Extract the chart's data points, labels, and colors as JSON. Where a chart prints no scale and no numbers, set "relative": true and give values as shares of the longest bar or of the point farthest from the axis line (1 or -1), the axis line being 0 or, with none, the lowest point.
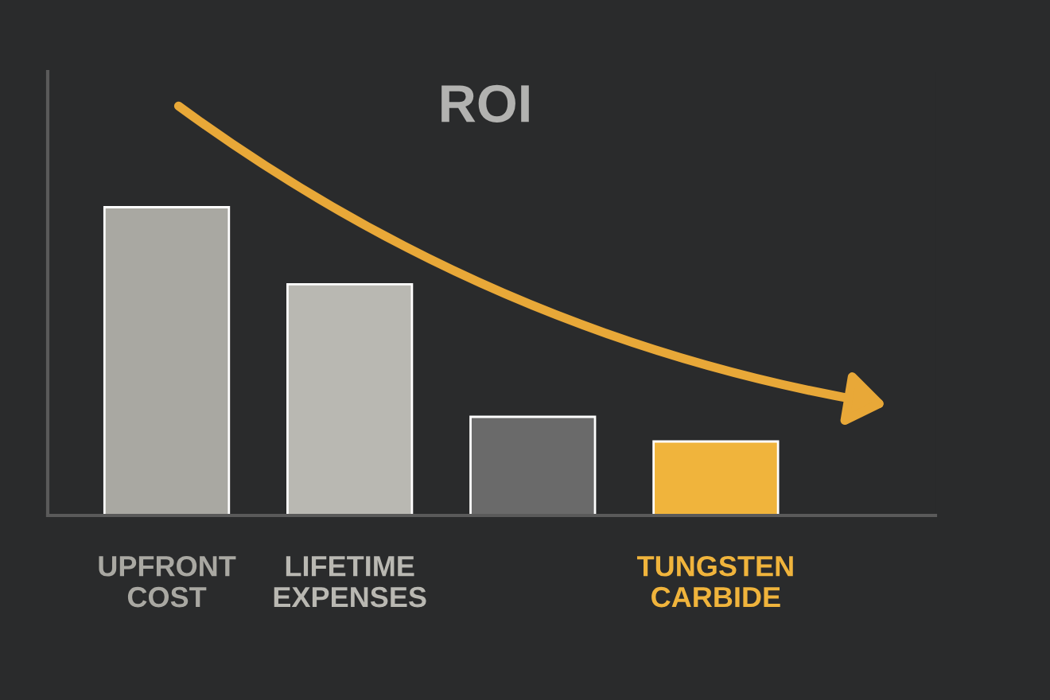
{
  "chart_data": {
    "type": "bar",
    "title": "ROI",
    "relative": true,
    "categories": [
      "UPFRONT\nCOST",
      "LIFETIME\nEXPENSES",
      null,
      "TUNGSTEN\nCARBIDE"
    ],
    "values": [
      1,
      0.75,
      0.32,
      0.24
    ],
    "colors": [
      "#a9a8a2",
      "#b9b8b2",
      "#6a6a6a",
      "#f0b43c"
    ]
  }
}
